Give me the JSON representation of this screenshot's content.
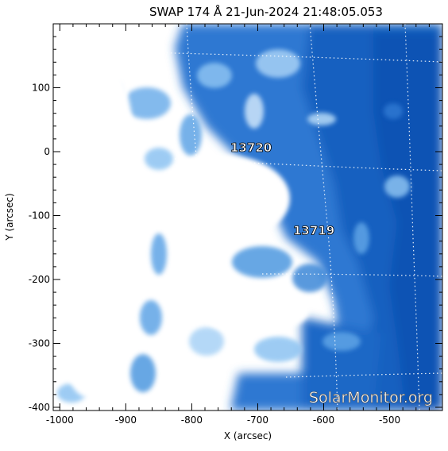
{
  "chart_data": {
    "type": "heatmap",
    "title": "SWAP 174 Å 21-Jun-2024 21:48:05.053",
    "xlabel": "X (arcsec)",
    "ylabel": "Y (arcsec)",
    "xlim": [
      -1010,
      -420
    ],
    "ylim": [
      -405,
      200
    ],
    "xticks": [
      -1000,
      -900,
      -800,
      -700,
      -600,
      -500
    ],
    "yticks": [
      -400,
      -300,
      -200,
      -100,
      0,
      100
    ],
    "grid": "dotted heliographic grid",
    "colormap": {
      "bright": "#ffffff",
      "mid": "#8cc3f2",
      "dark": "#0a4fb0"
    },
    "regions": [
      {
        "label": "13720",
        "x": -710,
        "y": 0
      },
      {
        "label": "13719",
        "x": -615,
        "y": -130
      }
    ],
    "watermark": "SolarMonitor.org"
  }
}
